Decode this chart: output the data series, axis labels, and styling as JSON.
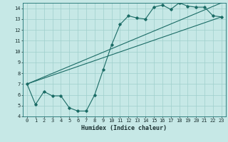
{
  "title": "",
  "xlabel": "Humidex (Indice chaleur)",
  "ylabel": "",
  "bg_color": "#c6e8e6",
  "grid_color": "#9fcfcc",
  "line_color": "#1a6b65",
  "xlim": [
    -0.5,
    23.5
  ],
  "ylim": [
    4,
    14.5
  ],
  "xticks": [
    0,
    1,
    2,
    3,
    4,
    5,
    6,
    7,
    8,
    9,
    10,
    11,
    12,
    13,
    14,
    15,
    16,
    17,
    18,
    19,
    20,
    21,
    22,
    23
  ],
  "yticks": [
    4,
    5,
    6,
    7,
    8,
    9,
    10,
    11,
    12,
    13,
    14
  ],
  "curve1_x": [
    0,
    1,
    2,
    3,
    4,
    5,
    6,
    7,
    8,
    9,
    10,
    11,
    12,
    13,
    14,
    15,
    16,
    17,
    18,
    19,
    20,
    21,
    22,
    23
  ],
  "curve1_y": [
    7.0,
    5.1,
    6.3,
    5.9,
    5.9,
    4.8,
    4.5,
    4.5,
    6.0,
    8.3,
    10.6,
    12.5,
    13.3,
    13.1,
    13.0,
    14.1,
    14.3,
    13.9,
    14.5,
    14.2,
    14.1,
    14.1,
    13.3,
    13.2
  ],
  "line1_x": [
    0,
    23
  ],
  "line1_y": [
    7.0,
    13.2
  ],
  "line2_x": [
    0,
    23
  ],
  "line2_y": [
    7.0,
    14.5
  ],
  "marker": "D",
  "markersize": 1.8,
  "linewidth": 0.8,
  "tick_fontsize": 5.0,
  "xlabel_fontsize": 6.0
}
